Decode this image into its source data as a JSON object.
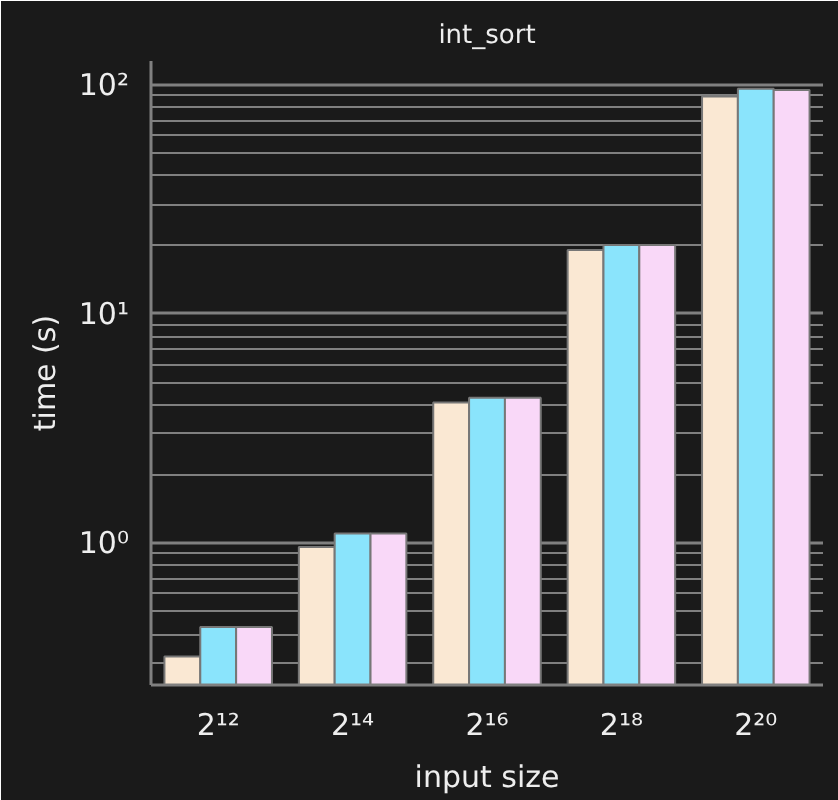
{
  "chart_data": {
    "type": "bar",
    "title": "int_sort",
    "xlabel": "input size",
    "ylabel": "time (s)",
    "categories": [
      "2¹²",
      "2¹⁴",
      "2¹⁶",
      "2¹⁸",
      "2²⁰"
    ],
    "series": [
      {
        "color": "#fae8d3",
        "values": [
          0.32,
          0.96,
          4.1,
          19,
          89
        ]
      },
      {
        "color": "#8ae4fc",
        "values": [
          0.43,
          1.1,
          4.3,
          20,
          96
        ]
      },
      {
        "color": "#f9d8f8",
        "values": [
          0.43,
          1.1,
          4.3,
          20,
          95
        ]
      }
    ],
    "log": "y",
    "ylim": [
      0.24,
      127
    ],
    "yticks": [
      {
        "value": 1,
        "label": "10⁰"
      },
      {
        "value": 10,
        "label": "10¹"
      },
      {
        "value": 100,
        "label": "10²"
      }
    ],
    "grid": "y"
  }
}
